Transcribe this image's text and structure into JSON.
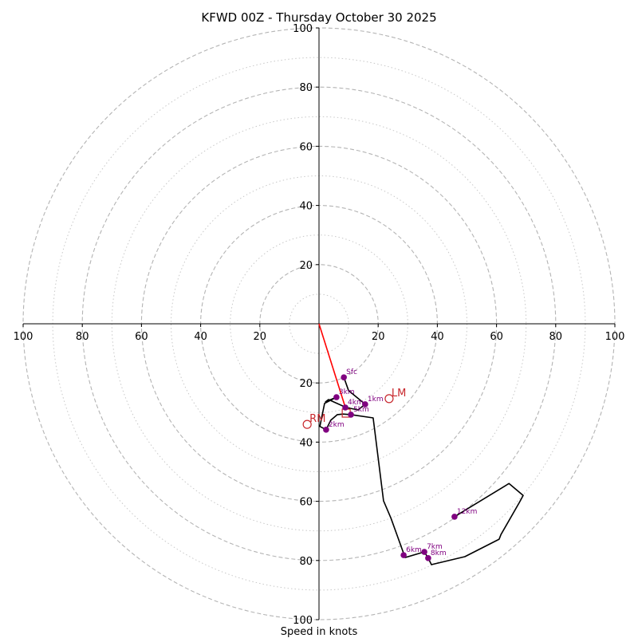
{
  "chart_data": {
    "type": "line",
    "subtype": "hodograph",
    "title": "KFWD 00Z - Thursday October 30 2025",
    "xlabel": "Speed in knots",
    "ylabel": "",
    "rmax": 100,
    "ring_major": [
      20,
      40,
      60,
      80,
      100
    ],
    "ring_minor": [
      10,
      30,
      50,
      70,
      90
    ],
    "x_tick_labels": [
      "100",
      "80",
      "60",
      "40",
      "20",
      "20",
      "40",
      "60",
      "80",
      "100"
    ],
    "x_tick_values": [
      -100,
      -80,
      -60,
      -40,
      -20,
      20,
      40,
      60,
      80,
      100
    ],
    "y_tick_labels_up": [
      "20",
      "40",
      "60",
      "80",
      "100"
    ],
    "y_tick_labels_down": [
      "20",
      "40",
      "60",
      "80",
      "100"
    ],
    "grid": true,
    "trace": {
      "color": "#000000",
      "u": [
        8.4,
        10.0,
        15.6,
        13.2,
        9.2,
        3.2,
        2.2,
        5.9,
        1.9,
        0.3,
        2.4,
        4.0,
        6.2,
        8.1,
        10.8,
        18.3,
        21.8,
        24.3,
        29.1,
        35.6,
        36.9,
        38.0,
        49.3,
        60.9,
        61.5,
        67.7,
        69.0,
        64.2,
        45.8
      ],
      "v": [
        -18.1,
        -22.6,
        -27.2,
        -29.1,
        -28.3,
        -25.6,
        -26.4,
        -24.8,
        -26.9,
        -34.7,
        -35.8,
        -32.6,
        -30.7,
        -30.5,
        -30.7,
        -31.8,
        -59.8,
        -65.7,
        -79.0,
        -77.1,
        -79.2,
        -81.4,
        -78.7,
        -72.8,
        -71.2,
        -60.4,
        -58.0,
        -54.0,
        -65.2
      ]
    },
    "points": [
      {
        "label": "Sfc",
        "u": 8.4,
        "v": -18.1
      },
      {
        "label": "1km",
        "u": 15.6,
        "v": -27.2
      },
      {
        "label": "2km",
        "u": 2.4,
        "v": -35.8
      },
      {
        "label": "3km",
        "u": 5.9,
        "v": -24.8
      },
      {
        "label": "4km",
        "u": 8.9,
        "v": -28.3
      },
      {
        "label": "5km",
        "u": 10.8,
        "v": -30.7
      },
      {
        "label": "6km",
        "u": 28.6,
        "v": -78.2
      },
      {
        "label": "7km",
        "u": 35.6,
        "v": -77.1
      },
      {
        "label": "8km",
        "u": 36.9,
        "v": -79.2
      },
      {
        "label": "12km",
        "u": 45.8,
        "v": -65.2
      }
    ],
    "point_color": "#800080",
    "storm_motion": [
      {
        "label": "LM",
        "u": 23.7,
        "v": -25.3
      },
      {
        "label": "RM",
        "u": -4.0,
        "v": -34.0
      }
    ],
    "mean_wind": {
      "label": "EM",
      "u": 9.2,
      "v": -30.2
    },
    "marker_color": "#c8282d",
    "shear_vector": {
      "from_u": 0,
      "from_v": 0,
      "to_u": 9.2,
      "to_v": -29.2,
      "color": "#ff0000"
    }
  }
}
